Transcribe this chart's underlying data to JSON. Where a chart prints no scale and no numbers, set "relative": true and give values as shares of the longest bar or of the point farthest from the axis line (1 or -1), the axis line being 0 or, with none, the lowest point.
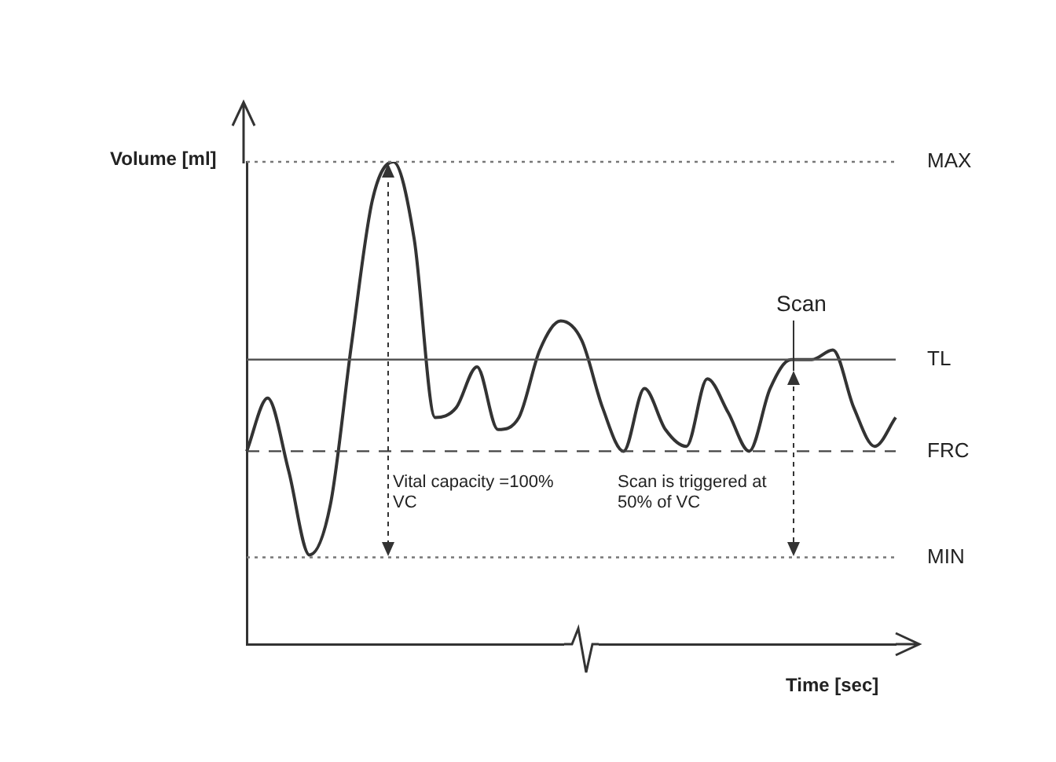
{
  "chart_data": {
    "type": "line",
    "xlabel": "Time [sec]",
    "ylabel": "Volume [ml]",
    "relative": true,
    "marker": "none",
    "line_style": "solid",
    "legend": false,
    "categories": [
      null,
      null,
      null,
      null,
      null,
      null,
      null,
      null,
      null,
      null,
      null,
      null,
      null,
      null,
      null,
      null,
      null,
      null,
      null,
      null,
      null,
      null,
      null,
      null,
      null,
      null,
      null,
      null,
      null,
      null,
      null,
      null
    ],
    "series": [
      {
        "color": "#333333",
        "values": [
          0.4,
          0.51,
          0.36,
          0.185,
          0.29,
          0.62,
          0.92,
          1.0,
          0.84,
          0.47,
          0.49,
          0.575,
          0.445,
          0.47,
          0.61,
          0.67,
          0.63,
          0.49,
          0.4,
          0.53,
          0.445,
          0.41,
          0.55,
          0.48,
          0.4,
          0.53,
          0.59,
          0.59,
          0.61,
          0.49,
          0.41,
          0.47
        ]
      }
    ],
    "ref_lines": [
      {
        "axis": "y",
        "value": 1.0,
        "label": "MAX",
        "line_style": "dotted",
        "color": "#777777"
      },
      {
        "axis": "y",
        "value": 0.59,
        "label": "TL",
        "line_style": "solid",
        "color": "#555555"
      },
      {
        "axis": "y",
        "value": 0.4,
        "label": "FRC",
        "line_style": "dashed",
        "color": "#444444"
      },
      {
        "axis": "y",
        "value": 0.18,
        "label": "MIN",
        "line_style": "dotted",
        "color": "#777777"
      }
    ],
    "annotations": [
      "Vital capacity =100% VC",
      "Scan is triggered at 50% of VC",
      "Scan"
    ]
  }
}
